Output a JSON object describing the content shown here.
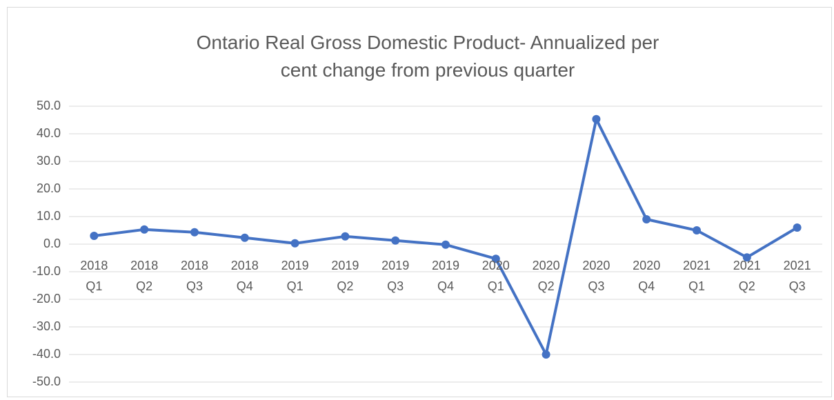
{
  "chart_data": {
    "type": "line",
    "title": "Ontario Real Gross Domestic Product- Annualized per cent change from previous quarter",
    "categories": [
      "2018 Q1",
      "2018 Q2",
      "2018 Q3",
      "2018 Q4",
      "2019 Q1",
      "2019 Q2",
      "2019 Q3",
      "2019 Q4",
      "2020 Q1",
      "2020 Q2",
      "2020 Q3",
      "2020 Q4",
      "2021 Q1",
      "2021 Q2",
      "2021 Q3"
    ],
    "values": [
      3.0,
      5.3,
      4.3,
      2.3,
      0.3,
      2.8,
      1.3,
      -0.2,
      -5.3,
      -40.0,
      45.3,
      9.0,
      5.0,
      -4.8,
      6.0
    ],
    "color": "#4472c4",
    "ylim": [
      -50,
      50
    ],
    "yticks": [
      {
        "value": -50,
        "label": "-50.0"
      },
      {
        "value": -40,
        "label": "-40.0"
      },
      {
        "value": -30,
        "label": "-30.0"
      },
      {
        "value": -20,
        "label": "-20.0"
      },
      {
        "value": -10,
        "label": "-10.0"
      },
      {
        "value": 0,
        "label": "0.0"
      },
      {
        "value": 10,
        "label": "10.0"
      },
      {
        "value": 20,
        "label": "20.0"
      },
      {
        "value": 30,
        "label": "30.0"
      },
      {
        "value": 40,
        "label": "40.0"
      },
      {
        "value": 50,
        "label": "50.0"
      }
    ],
    "grid": true
  }
}
